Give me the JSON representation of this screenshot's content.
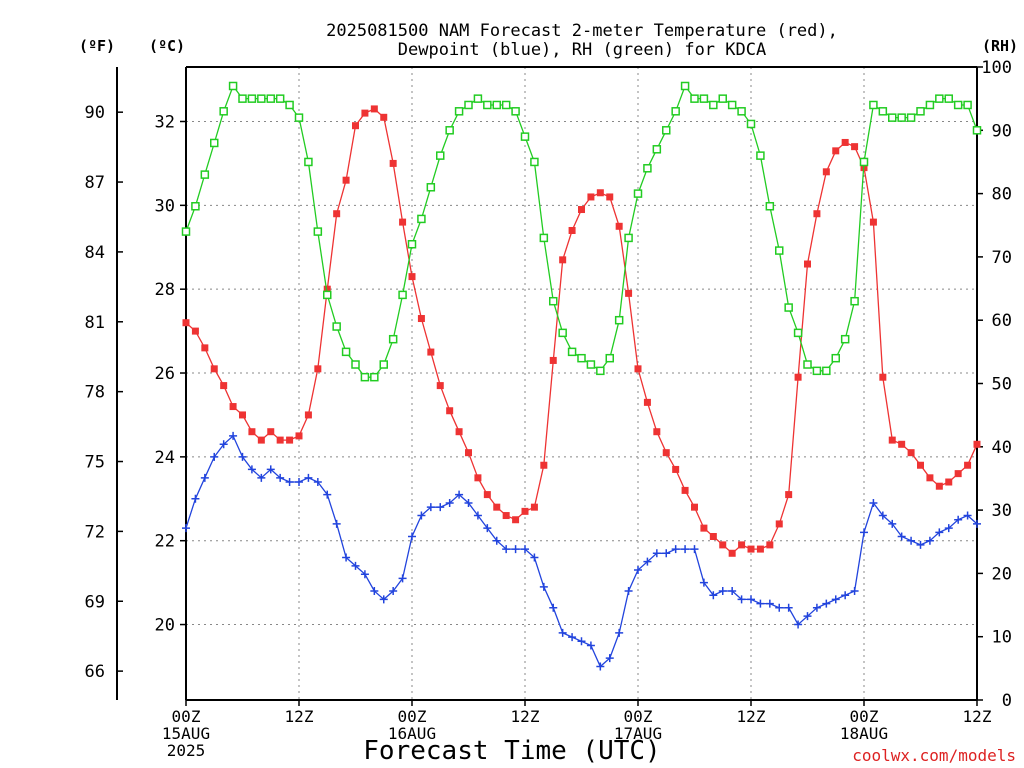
{
  "chart_data": {
    "type": "line",
    "title": "2025081500 NAM Forecast 2-meter Temperature (red),",
    "subtitle": "Dewpoint (blue), RH (green) for KDCA",
    "xlabel": "Forecast Time (UTC)",
    "unit_labels": {
      "fahrenheit": "(ºF)",
      "celsius": "(ºC)",
      "rh": "(RH)"
    },
    "credit": "coolwx.com/models",
    "x_range_hours": [
      0,
      84
    ],
    "x_ticks": [
      {
        "h": 0,
        "lines": [
          "00Z",
          "15AUG",
          "2025"
        ]
      },
      {
        "h": 12,
        "lines": [
          "12Z"
        ]
      },
      {
        "h": 24,
        "lines": [
          "00Z",
          "16AUG"
        ]
      },
      {
        "h": 36,
        "lines": [
          "12Z"
        ]
      },
      {
        "h": 48,
        "lines": [
          "00Z",
          "17AUG"
        ]
      },
      {
        "h": 60,
        "lines": [
          "12Z"
        ]
      },
      {
        "h": 72,
        "lines": [
          "00Z",
          "18AUG"
        ]
      },
      {
        "h": 84,
        "lines": [
          "12Z"
        ]
      }
    ],
    "celsius_ticks": [
      20,
      22,
      24,
      26,
      28,
      30,
      32
    ],
    "fahrenheit_ticks": [
      66,
      69,
      72,
      75,
      78,
      81,
      84,
      87,
      90
    ],
    "rh_ticks": [
      0,
      10,
      20,
      30,
      40,
      50,
      60,
      70,
      80,
      90,
      100
    ],
    "y_range_celsius": [
      18.2,
      33.3
    ],
    "y_range_rh": [
      0,
      100
    ],
    "grid": true,
    "x_hours": [
      0,
      1,
      2,
      3,
      4,
      5,
      6,
      7,
      8,
      9,
      10,
      11,
      12,
      13,
      14,
      15,
      16,
      17,
      18,
      19,
      20,
      21,
      22,
      23,
      24,
      25,
      26,
      27,
      28,
      29,
      30,
      31,
      32,
      33,
      34,
      35,
      36,
      37,
      38,
      39,
      40,
      41,
      42,
      43,
      44,
      45,
      46,
      47,
      48,
      49,
      50,
      51,
      52,
      53,
      54,
      55,
      56,
      57,
      58,
      59,
      60,
      61,
      62,
      63,
      64,
      65,
      66,
      67,
      68,
      69,
      70,
      71,
      72,
      73,
      74,
      75,
      76,
      77,
      78,
      79,
      80,
      81,
      82,
      83,
      84
    ],
    "series": [
      {
        "name": "Temperature",
        "axis": "celsius",
        "color": "#ee3333",
        "marker": "filled-square",
        "values": [
          27.2,
          27.0,
          26.6,
          26.1,
          25.7,
          25.2,
          25.0,
          24.6,
          24.4,
          24.6,
          24.4,
          24.4,
          24.5,
          25.0,
          26.1,
          28.0,
          29.8,
          30.6,
          31.9,
          32.2,
          32.3,
          32.1,
          31.0,
          29.6,
          28.3,
          27.3,
          26.5,
          25.7,
          25.1,
          24.6,
          24.1,
          23.5,
          23.1,
          22.8,
          22.6,
          22.5,
          22.7,
          22.8,
          23.8,
          26.3,
          28.7,
          29.4,
          29.9,
          30.2,
          30.3,
          30.2,
          29.5,
          27.9,
          26.1,
          25.3,
          24.6,
          24.1,
          23.7,
          23.2,
          22.8,
          22.3,
          22.1,
          21.9,
          21.7,
          21.9,
          21.8,
          21.8,
          21.9,
          22.4,
          23.1,
          25.9,
          28.6,
          29.8,
          30.8,
          31.3,
          31.5,
          31.4,
          30.9,
          29.6,
          25.9,
          24.4,
          24.3,
          24.1,
          23.8,
          23.5,
          23.3,
          23.4,
          23.6,
          23.8,
          24.3
        ]
      },
      {
        "name": "Dewpoint",
        "axis": "celsius",
        "color": "#2244dd",
        "marker": "plus",
        "values": [
          22.3,
          23.0,
          23.5,
          24.0,
          24.3,
          24.5,
          24.0,
          23.7,
          23.5,
          23.7,
          23.5,
          23.4,
          23.4,
          23.5,
          23.4,
          23.1,
          22.4,
          21.6,
          21.4,
          21.2,
          20.8,
          20.6,
          20.8,
          21.1,
          22.1,
          22.6,
          22.8,
          22.8,
          22.9,
          23.1,
          22.9,
          22.6,
          22.3,
          22.0,
          21.8,
          21.8,
          21.8,
          21.6,
          20.9,
          20.4,
          19.8,
          19.7,
          19.6,
          19.5,
          19.0,
          19.2,
          19.8,
          20.8,
          21.3,
          21.5,
          21.7,
          21.7,
          21.8,
          21.8,
          21.8,
          21.0,
          20.7,
          20.8,
          20.8,
          20.6,
          20.6,
          20.5,
          20.5,
          20.4,
          20.4,
          20.0,
          20.2,
          20.4,
          20.5,
          20.6,
          20.7,
          20.8,
          22.2,
          22.9,
          22.6,
          22.4,
          22.1,
          22.0,
          21.9,
          22.0,
          22.2,
          22.3,
          22.5,
          22.6,
          22.4
        ]
      },
      {
        "name": "RH",
        "axis": "rh",
        "color": "#22cc22",
        "marker": "open-square",
        "values": [
          74,
          78,
          83,
          88,
          93,
          97,
          95,
          95,
          95,
          95,
          95,
          94,
          92,
          85,
          74,
          64,
          59,
          55,
          53,
          51,
          51,
          53,
          57,
          64,
          72,
          76,
          81,
          86,
          90,
          93,
          94,
          95,
          94,
          94,
          94,
          93,
          89,
          85,
          73,
          63,
          58,
          55,
          54,
          53,
          52,
          54,
          60,
          73,
          80,
          84,
          87,
          90,
          93,
          97,
          95,
          95,
          94,
          95,
          94,
          93,
          91,
          86,
          78,
          71,
          62,
          58,
          53,
          52,
          52,
          54,
          57,
          63,
          85,
          94,
          93,
          92,
          92,
          92,
          93,
          94,
          95,
          95,
          94,
          94,
          90
        ]
      }
    ]
  }
}
